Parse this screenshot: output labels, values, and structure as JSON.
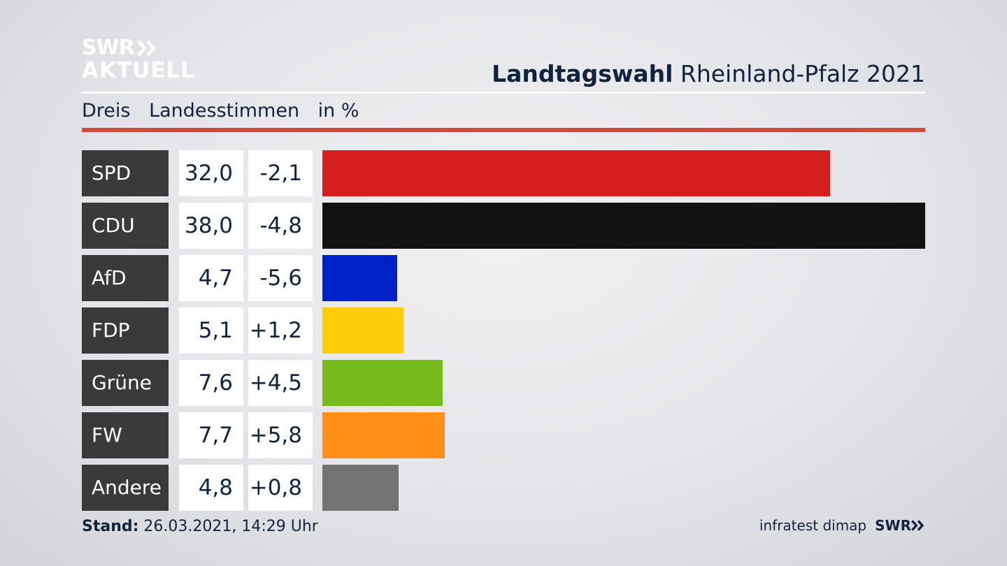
{
  "logo": {
    "line1": "SWR",
    "line2": "AKTUELL"
  },
  "header": {
    "title_bold": "Landtagswahl",
    "title_rest": "Rheinland-Pfalz 2021"
  },
  "subtitle": {
    "region": "Dreis",
    "measure": "Landesstimmen",
    "unit": "in %"
  },
  "colors": {
    "accent_line": "#d04a3c",
    "label_bg": "#3a3a3a",
    "text": "#12233f"
  },
  "chart_data": {
    "type": "bar",
    "orientation": "horizontal",
    "max_value": 38.0,
    "rows": [
      {
        "party": "SPD",
        "value": 32.0,
        "value_label": "32,0",
        "diff_label": "-2,1",
        "color": "#d51f1f"
      },
      {
        "party": "CDU",
        "value": 38.0,
        "value_label": "38,0",
        "diff_label": "-4,8",
        "color": "#121212"
      },
      {
        "party": "AfD",
        "value": 4.7,
        "value_label": "4,7",
        "diff_label": "-5,6",
        "color": "#0020c8"
      },
      {
        "party": "FDP",
        "value": 5.1,
        "value_label": "5,1",
        "diff_label": "+1,2",
        "color": "#fecc08"
      },
      {
        "party": "Grüne",
        "value": 7.6,
        "value_label": "7,6",
        "diff_label": "+4,5",
        "color": "#77bb1d"
      },
      {
        "party": "FW",
        "value": 7.7,
        "value_label": "7,7",
        "diff_label": "+5,8",
        "color": "#fd8e16"
      },
      {
        "party": "Andere",
        "value": 4.8,
        "value_label": "4,8",
        "diff_label": "+0,8",
        "color": "#737374"
      }
    ]
  },
  "footer": {
    "stand_label": "Stand:",
    "stand_value": "26.03.2021, 14:29 Uhr",
    "source": "infratest dimap",
    "brand": "SWR"
  }
}
